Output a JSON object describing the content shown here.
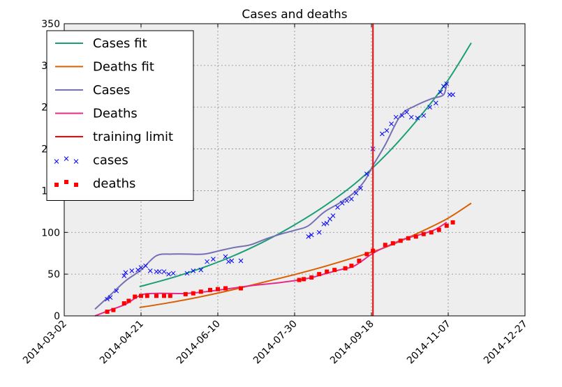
{
  "chart_data": {
    "type": "line",
    "title": "Cases and deaths",
    "xlabel": "",
    "ylabel": "",
    "x_axis": {
      "kind": "date",
      "min": "2014-03-02",
      "max": "2014-12-27"
    },
    "ylim": [
      0,
      350
    ],
    "x_ticks": [
      "2014-03-02",
      "2014-04-21",
      "2014-06-10",
      "2014-07-30",
      "2014-09-18",
      "2014-11-07",
      "2014-12-27"
    ],
    "y_ticks": [
      0,
      50,
      100,
      150,
      200,
      250,
      300,
      350
    ],
    "grid": true,
    "background": "#eeeeee",
    "legend": {
      "placement": "top-left",
      "entries": [
        {
          "label": "Cases fit",
          "kind": "line",
          "color": "#1b9e77"
        },
        {
          "label": "Deaths fit",
          "kind": "line",
          "color": "#d95f02"
        },
        {
          "label": "Cases",
          "kind": "line",
          "color": "#7570b3"
        },
        {
          "label": "Deaths",
          "kind": "line",
          "color": "#e7298a"
        },
        {
          "label": "training limit",
          "kind": "line",
          "color": "#ff0000"
        },
        {
          "label": "cases",
          "kind": "x-marker",
          "color": "#0000ff"
        },
        {
          "label": "deaths",
          "kind": "square-marker",
          "color": "#ff0000"
        }
      ]
    },
    "training_limit": {
      "x": "2014-09-19",
      "color": "#ff0000"
    },
    "series": [
      {
        "name": "Cases fit",
        "kind": "line",
        "color": "#1b9e77",
        "points": [
          [
            "2014-04-20",
            35
          ],
          [
            "2014-05-10",
            45
          ],
          [
            "2014-05-30",
            57
          ],
          [
            "2014-06-19",
            71
          ],
          [
            "2014-07-09",
            88
          ],
          [
            "2014-07-29",
            108
          ],
          [
            "2014-08-18",
            131
          ],
          [
            "2014-09-07",
            158
          ],
          [
            "2014-09-27",
            192
          ],
          [
            "2014-10-17",
            233
          ],
          [
            "2014-11-06",
            280
          ],
          [
            "2014-11-22",
            327
          ]
        ]
      },
      {
        "name": "Deaths fit",
        "kind": "line",
        "color": "#d95f02",
        "points": [
          [
            "2014-04-20",
            10
          ],
          [
            "2014-05-10",
            16
          ],
          [
            "2014-05-30",
            23
          ],
          [
            "2014-06-19",
            31
          ],
          [
            "2014-07-09",
            40
          ],
          [
            "2014-07-29",
            49
          ],
          [
            "2014-08-18",
            59
          ],
          [
            "2014-09-07",
            70
          ],
          [
            "2014-09-27",
            82
          ],
          [
            "2014-10-17",
            98
          ],
          [
            "2014-11-06",
            116
          ],
          [
            "2014-11-22",
            135
          ]
        ]
      },
      {
        "name": "Cases",
        "kind": "line",
        "color": "#7570b3",
        "points": [
          [
            "2014-03-22",
            8
          ],
          [
            "2014-04-01",
            25
          ],
          [
            "2014-04-11",
            42
          ],
          [
            "2014-04-21",
            55
          ],
          [
            "2014-05-01",
            72
          ],
          [
            "2014-05-11",
            74
          ],
          [
            "2014-05-21",
            74
          ],
          [
            "2014-06-01",
            74
          ],
          [
            "2014-06-11",
            78
          ],
          [
            "2014-06-21",
            82
          ],
          [
            "2014-07-01",
            85
          ],
          [
            "2014-07-11",
            92
          ],
          [
            "2014-07-21",
            98
          ],
          [
            "2014-07-31",
            103
          ],
          [
            "2014-08-08",
            108
          ],
          [
            "2014-08-18",
            124
          ],
          [
            "2014-08-28",
            135
          ],
          [
            "2014-09-07",
            148
          ],
          [
            "2014-09-14",
            163
          ],
          [
            "2014-09-19",
            180
          ],
          [
            "2014-09-27",
            205
          ],
          [
            "2014-10-07",
            240
          ],
          [
            "2014-10-17",
            252
          ],
          [
            "2014-10-27",
            260
          ],
          [
            "2014-11-04",
            265
          ],
          [
            "2014-11-06",
            280
          ]
        ]
      },
      {
        "name": "Deaths",
        "kind": "line",
        "color": "#e7298a",
        "points": [
          [
            "2014-03-22",
            0
          ],
          [
            "2014-04-01",
            7
          ],
          [
            "2014-04-11",
            14
          ],
          [
            "2014-04-21",
            25
          ],
          [
            "2014-05-01",
            27
          ],
          [
            "2014-05-21",
            27
          ],
          [
            "2014-06-11",
            31
          ],
          [
            "2014-07-01",
            36
          ],
          [
            "2014-07-21",
            40
          ],
          [
            "2014-08-08",
            45
          ],
          [
            "2014-08-18",
            50
          ],
          [
            "2014-08-28",
            55
          ],
          [
            "2014-09-07",
            60
          ],
          [
            "2014-09-19",
            75
          ],
          [
            "2014-09-29",
            84
          ],
          [
            "2014-10-09",
            92
          ],
          [
            "2014-10-19",
            97
          ],
          [
            "2014-10-29",
            103
          ],
          [
            "2014-11-06",
            112
          ]
        ]
      },
      {
        "name": "cases",
        "kind": "scatter-x",
        "color": "#0000ff",
        "points": [
          [
            "2014-03-30",
            20
          ],
          [
            "2014-04-01",
            22
          ],
          [
            "2014-04-05",
            30
          ],
          [
            "2014-04-10",
            48
          ],
          [
            "2014-04-11",
            52
          ],
          [
            "2014-04-15",
            54
          ],
          [
            "2014-04-19",
            55
          ],
          [
            "2014-04-21",
            58
          ],
          [
            "2014-04-24",
            60
          ],
          [
            "2014-04-27",
            54
          ],
          [
            "2014-05-01",
            53
          ],
          [
            "2014-05-03",
            53
          ],
          [
            "2014-05-06",
            53
          ],
          [
            "2014-05-09",
            50
          ],
          [
            "2014-05-12",
            51
          ],
          [
            "2014-05-21",
            51
          ],
          [
            "2014-05-25",
            54
          ],
          [
            "2014-05-30",
            55
          ],
          [
            "2014-06-03",
            65
          ],
          [
            "2014-06-07",
            68
          ],
          [
            "2014-06-15",
            71
          ],
          [
            "2014-06-17",
            65
          ],
          [
            "2014-06-19",
            66
          ],
          [
            "2014-06-25",
            66
          ],
          [
            "2014-08-08",
            95
          ],
          [
            "2014-08-10",
            97
          ],
          [
            "2014-08-15",
            100
          ],
          [
            "2014-08-18",
            110
          ],
          [
            "2014-08-20",
            111
          ],
          [
            "2014-08-22",
            116
          ],
          [
            "2014-08-24",
            120
          ],
          [
            "2014-08-27",
            130
          ],
          [
            "2014-08-30",
            135
          ],
          [
            "2014-09-02",
            138
          ],
          [
            "2014-09-05",
            140
          ],
          [
            "2014-09-08",
            147
          ],
          [
            "2014-09-11",
            153
          ],
          [
            "2014-09-15",
            170
          ],
          [
            "2014-09-19",
            200
          ],
          [
            "2014-09-25",
            218
          ],
          [
            "2014-09-28",
            222
          ],
          [
            "2014-10-01",
            230
          ],
          [
            "2014-10-04",
            238
          ],
          [
            "2014-10-08",
            240
          ],
          [
            "2014-10-11",
            244
          ],
          [
            "2014-10-14",
            238
          ],
          [
            "2014-10-18",
            237
          ],
          [
            "2014-10-22",
            240
          ],
          [
            "2014-10-26",
            250
          ],
          [
            "2014-10-30",
            255
          ],
          [
            "2014-11-02",
            268
          ],
          [
            "2014-11-04",
            275
          ],
          [
            "2014-11-06",
            278
          ],
          [
            "2014-11-08",
            265
          ],
          [
            "2014-11-10",
            265
          ]
        ]
      },
      {
        "name": "deaths",
        "kind": "scatter-square",
        "color": "#ff0000",
        "points": [
          [
            "2014-03-30",
            5
          ],
          [
            "2014-04-03",
            7
          ],
          [
            "2014-04-10",
            15
          ],
          [
            "2014-04-13",
            18
          ],
          [
            "2014-04-17",
            23
          ],
          [
            "2014-04-21",
            24
          ],
          [
            "2014-04-25",
            24
          ],
          [
            "2014-05-01",
            24
          ],
          [
            "2014-05-06",
            24
          ],
          [
            "2014-05-10",
            24
          ],
          [
            "2014-05-20",
            26
          ],
          [
            "2014-05-25",
            27
          ],
          [
            "2014-05-30",
            29
          ],
          [
            "2014-06-05",
            31
          ],
          [
            "2014-06-10",
            32
          ],
          [
            "2014-06-15",
            33
          ],
          [
            "2014-06-25",
            33
          ],
          [
            "2014-08-02",
            43
          ],
          [
            "2014-08-05",
            44
          ],
          [
            "2014-08-10",
            46
          ],
          [
            "2014-08-15",
            50
          ],
          [
            "2014-08-20",
            53
          ],
          [
            "2014-08-25",
            55
          ],
          [
            "2014-09-01",
            57
          ],
          [
            "2014-09-05",
            60
          ],
          [
            "2014-09-10",
            66
          ],
          [
            "2014-09-15",
            74
          ],
          [
            "2014-09-19",
            78
          ],
          [
            "2014-09-27",
            85
          ],
          [
            "2014-10-02",
            87
          ],
          [
            "2014-10-07",
            90
          ],
          [
            "2014-10-12",
            93
          ],
          [
            "2014-10-17",
            95
          ],
          [
            "2014-10-22",
            98
          ],
          [
            "2014-10-27",
            100
          ],
          [
            "2014-11-01",
            103
          ],
          [
            "2014-11-06",
            108
          ],
          [
            "2014-11-10",
            112
          ]
        ]
      }
    ]
  }
}
